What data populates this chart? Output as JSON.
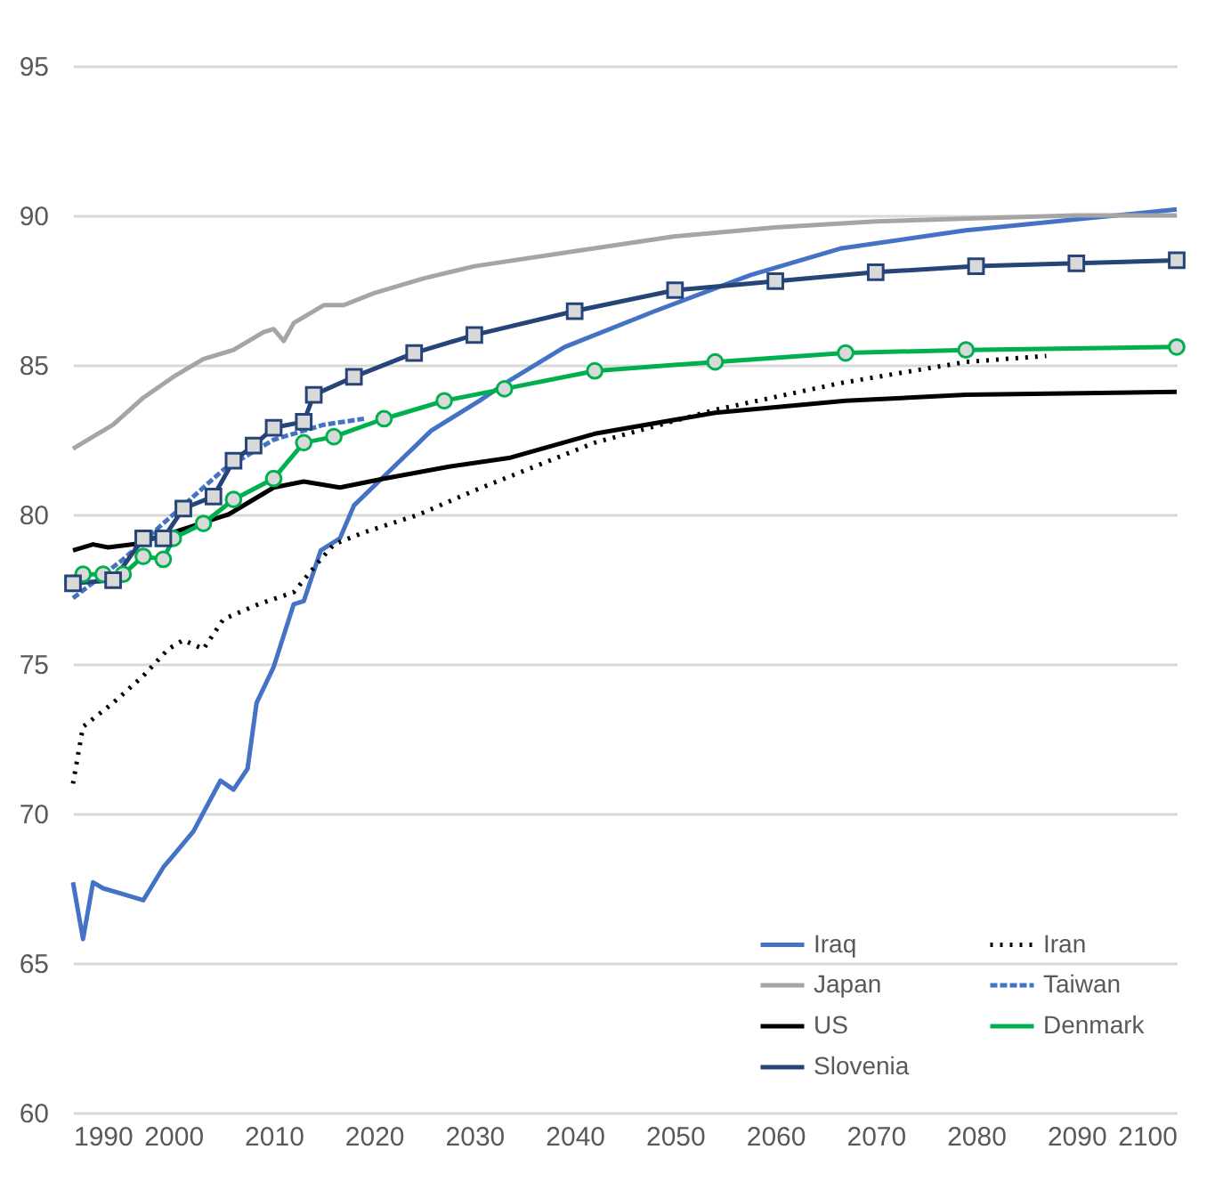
{
  "chart_data": {
    "type": "line",
    "xlim": [
      1990,
      2100
    ],
    "xticks": [
      1990,
      2000,
      2010,
      2020,
      2030,
      2040,
      2050,
      2060,
      2070,
      2080,
      2090,
      2100
    ],
    "ylim": [
      60,
      95
    ],
    "yticks": [
      60,
      65,
      70,
      75,
      80,
      85,
      90,
      95
    ],
    "grid": "y",
    "legend": "bottom right",
    "series": [
      {
        "name": "Iraq",
        "color": "#4472c4",
        "line_style": "solid",
        "marker": "none",
        "x": [
          1990,
          1991,
          1992,
          1993,
          1995,
          1997,
          1999,
          2000,
          2002,
          2004.7,
          2006,
          2007.4,
          2008.3,
          2010,
          2012,
          2013,
          2014.7,
          2016.6,
          2018,
          2022,
          2025.7,
          2030.5,
          2033.6,
          2039,
          2048,
          2057.5,
          2066.6,
          2079,
          2091,
          2100
        ],
        "values": [
          67.7,
          65.8,
          67.7,
          67.5,
          67.3,
          67.1,
          68.2,
          68.6,
          69.4,
          71.1,
          70.8,
          71.5,
          73.7,
          74.9,
          77.0,
          77.1,
          78.8,
          79.2,
          80.3,
          81.6,
          82.8,
          83.8,
          84.5,
          85.6,
          86.8,
          88.0,
          88.9,
          89.5,
          89.9,
          90.2
        ]
      },
      {
        "name": "Iran",
        "color": "#000000",
        "line_style": "dotted",
        "marker": "none",
        "x": [
          1990,
          1991,
          1994,
          1997,
          1999.5,
          2001,
          2003,
          2005,
          2008.5,
          2012,
          2014.7,
          2016,
          2019,
          2024.5,
          2030,
          2042,
          2054,
          2066.6,
          2079,
          2087
        ],
        "values": [
          71.0,
          72.9,
          73.7,
          74.6,
          75.5,
          75.8,
          75.5,
          76.5,
          77.0,
          77.4,
          78.5,
          79.0,
          79.4,
          80.0,
          80.8,
          82.4,
          83.5,
          84.4,
          85.1,
          85.3
        ]
      },
      {
        "name": "Japan",
        "color": "#a5a5a5",
        "line_style": "solid",
        "marker": "none",
        "x": [
          1990,
          1994,
          1997,
          2000,
          2003,
          2006,
          2009,
          2010,
          2011,
          2012,
          2015,
          2017,
          2020,
          2025,
          2030,
          2040,
          2050,
          2060,
          2070,
          2080,
          2090,
          2100
        ],
        "values": [
          82.2,
          83.0,
          83.9,
          84.6,
          85.2,
          85.5,
          86.1,
          86.2,
          85.8,
          86.4,
          87.0,
          87.0,
          87.4,
          87.9,
          88.3,
          88.8,
          89.3,
          89.6,
          89.8,
          89.9,
          90.0,
          90.0
        ]
      },
      {
        "name": "Taiwan",
        "color": "#4472c4",
        "line_style": "dashed",
        "marker": "none",
        "x": [
          1990,
          1995,
          2000,
          2005,
          2010,
          2015,
          2019
        ],
        "values": [
          77.2,
          78.5,
          80.0,
          81.5,
          82.5,
          83.0,
          83.2
        ]
      },
      {
        "name": "US",
        "color": "#000000",
        "line_style": "solid",
        "marker": "none",
        "x": [
          1990,
          1992,
          1993.5,
          1996,
          2000,
          2005.5,
          2010,
          2013,
          2016.6,
          2021,
          2027.5,
          2033.6,
          2042,
          2054,
          2067,
          2079,
          2100
        ],
        "values": [
          78.8,
          79.0,
          78.9,
          79.0,
          79.4,
          80.0,
          80.9,
          81.1,
          80.9,
          81.2,
          81.6,
          81.9,
          82.7,
          83.4,
          83.8,
          84.0,
          84.1
        ]
      },
      {
        "name": "Denmark",
        "color": "#00b050",
        "line_style": "solid",
        "marker": "circle",
        "x": [
          1990,
          1991,
          1993,
          1995,
          1997,
          1999,
          2000,
          2003,
          2006,
          2010,
          2013,
          2016,
          2021,
          2027,
          2033,
          2042,
          2054,
          2067,
          2079,
          2100
        ],
        "values": [
          77.7,
          78.0,
          78.0,
          78.0,
          78.6,
          78.5,
          79.2,
          79.7,
          80.5,
          81.2,
          82.4,
          82.6,
          83.2,
          83.8,
          84.2,
          84.8,
          85.1,
          85.4,
          85.5,
          85.6
        ]
      },
      {
        "name": "Slovenia",
        "color": "#264478",
        "line_style": "solid",
        "marker": "square",
        "x": [
          1990,
          1994,
          1997,
          1999,
          2001,
          2004,
          2006,
          2008,
          2010,
          2013,
          2014,
          2018,
          2024,
          2030,
          2040,
          2050,
          2060,
          2070,
          2080,
          2090,
          2100
        ],
        "values": [
          77.7,
          77.8,
          79.2,
          79.2,
          80.2,
          80.6,
          81.8,
          82.3,
          82.9,
          83.1,
          84.0,
          84.6,
          85.4,
          86.0,
          86.8,
          87.5,
          87.8,
          88.1,
          88.3,
          88.4,
          88.5
        ]
      }
    ]
  }
}
